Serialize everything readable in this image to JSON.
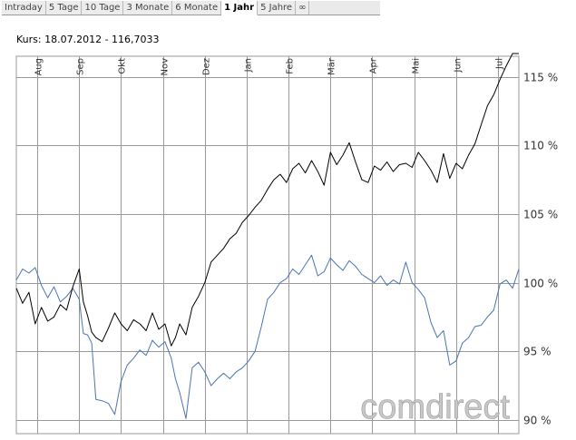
{
  "tabs": [
    {
      "id": "intraday",
      "label": "Intraday",
      "active": false
    },
    {
      "id": "5-tage",
      "label": "5 Tage",
      "active": false
    },
    {
      "id": "10-tage",
      "label": "10 Tage",
      "active": false
    },
    {
      "id": "3-monate",
      "label": "3 Monate",
      "active": false
    },
    {
      "id": "6-monate",
      "label": "6 Monate",
      "active": false
    },
    {
      "id": "1-jahr",
      "label": "1 Jahr",
      "active": true
    },
    {
      "id": "5-jahre",
      "label": "5 Jahre",
      "active": false
    },
    {
      "id": "max",
      "label": "∞",
      "active": false
    }
  ],
  "kurs_label": "Kurs: 18.07.2012 - 116,7033",
  "watermark": "comdirect",
  "colors": {
    "price": "#000000",
    "benchmark": "#4a74b4",
    "grid": "#999999",
    "watermark": "#c8c8c8"
  },
  "chart_data": {
    "type": "line",
    "title": "",
    "xlabel": "",
    "ylabel": "",
    "ylim": [
      89,
      116.5
    ],
    "y_ticks": [
      90,
      95,
      100,
      105,
      110,
      115
    ],
    "y_tick_labels": [
      "90 %",
      "95 %",
      "100 %",
      "105 %",
      "110 %",
      "115 %"
    ],
    "x_range": [
      0,
      12
    ],
    "x_ticks": [
      0.5,
      1.5,
      2.5,
      3.5,
      4.5,
      5.5,
      6.5,
      7.5,
      8.5,
      9.5,
      10.5,
      11.5
    ],
    "x_tick_labels": [
      "Aug",
      "Sep",
      "Okt",
      "Nov",
      "Dez",
      "Jan",
      "Feb",
      "Mär",
      "Apr",
      "Mai",
      "Jun",
      "Jul"
    ],
    "grid": true,
    "series": [
      {
        "color": "#000000",
        "x": [
          0,
          0.15,
          0.3,
          0.45,
          0.6,
          0.75,
          0.9,
          1.05,
          1.2,
          1.35,
          1.5,
          1.6,
          1.7,
          1.8,
          1.9,
          2.05,
          2.2,
          2.35,
          2.5,
          2.65,
          2.8,
          2.95,
          3.1,
          3.25,
          3.4,
          3.55,
          3.7,
          3.8,
          3.9,
          4.05,
          4.2,
          4.35,
          4.5,
          4.65,
          4.8,
          4.95,
          5.1,
          5.25,
          5.4,
          5.55,
          5.7,
          5.85,
          6.0,
          6.15,
          6.3,
          6.45,
          6.6,
          6.75,
          6.9,
          7.05,
          7.2,
          7.35,
          7.5,
          7.65,
          7.8,
          7.95,
          8.1,
          8.25,
          8.4,
          8.55,
          8.7,
          8.85,
          9.0,
          9.15,
          9.3,
          9.45,
          9.6,
          9.75,
          9.9,
          10.05,
          10.2,
          10.35,
          10.5,
          10.65,
          10.8,
          10.95,
          11.1,
          11.25,
          11.4,
          11.55,
          11.7,
          11.85,
          12.0
        ],
        "values": [
          99.6,
          98.5,
          99.3,
          97.0,
          98.2,
          97.2,
          97.5,
          98.4,
          98.0,
          99.7,
          101.0,
          98.6,
          97.6,
          96.4,
          96.0,
          95.7,
          96.7,
          97.8,
          97.0,
          96.5,
          97.3,
          97.0,
          96.5,
          97.8,
          96.6,
          97.0,
          95.4,
          96.0,
          97.0,
          96.2,
          98.2,
          99.0,
          100.0,
          101.5,
          102.0,
          102.5,
          103.2,
          103.6,
          104.4,
          104.9,
          105.5,
          106.0,
          106.8,
          107.5,
          107.9,
          107.3,
          108.3,
          108.7,
          108.0,
          108.9,
          108.1,
          107.1,
          109.5,
          108.6,
          109.3,
          110.2,
          108.8,
          107.5,
          107.3,
          108.5,
          108.2,
          108.8,
          108.1,
          108.6,
          108.7,
          108.4,
          109.5,
          108.9,
          108.2,
          107.3,
          109.4,
          107.6,
          108.7,
          108.3,
          109.3,
          110.1,
          111.5,
          112.9,
          113.7,
          114.8,
          115.8,
          116.7,
          116.7
        ]
      },
      {
        "color": "#4a74b4",
        "x": [
          0,
          0.15,
          0.3,
          0.45,
          0.6,
          0.75,
          0.9,
          1.05,
          1.2,
          1.35,
          1.5,
          1.6,
          1.7,
          1.8,
          1.9,
          2.05,
          2.2,
          2.35,
          2.5,
          2.65,
          2.8,
          2.95,
          3.1,
          3.25,
          3.4,
          3.55,
          3.7,
          3.8,
          3.9,
          4.05,
          4.2,
          4.35,
          4.5,
          4.65,
          4.8,
          4.95,
          5.1,
          5.25,
          5.4,
          5.55,
          5.7,
          5.85,
          6.0,
          6.15,
          6.3,
          6.45,
          6.6,
          6.75,
          6.9,
          7.05,
          7.2,
          7.35,
          7.5,
          7.65,
          7.8,
          7.95,
          8.1,
          8.25,
          8.4,
          8.55,
          8.7,
          8.85,
          9.0,
          9.15,
          9.3,
          9.45,
          9.6,
          9.75,
          9.9,
          10.05,
          10.2,
          10.35,
          10.5,
          10.65,
          10.8,
          10.95,
          11.1,
          11.25,
          11.4,
          11.55,
          11.7,
          11.85,
          12.0
        ],
        "values": [
          100.2,
          101.0,
          100.7,
          101.1,
          99.8,
          98.9,
          99.7,
          98.6,
          99.0,
          99.6,
          98.8,
          96.3,
          96.2,
          95.6,
          91.5,
          91.4,
          91.2,
          90.4,
          92.8,
          94.0,
          94.5,
          95.1,
          94.7,
          95.8,
          95.3,
          95.7,
          94.5,
          93.0,
          92.0,
          90.1,
          93.8,
          94.2,
          93.5,
          92.5,
          93.0,
          93.4,
          93.0,
          93.5,
          93.8,
          94.3,
          95.0,
          96.8,
          98.8,
          99.3,
          100.0,
          100.3,
          101.0,
          100.6,
          101.3,
          102.0,
          100.5,
          100.8,
          101.8,
          101.3,
          100.9,
          101.6,
          101.2,
          100.6,
          100.3,
          100.0,
          100.5,
          99.8,
          100.2,
          99.9,
          101.5,
          100.0,
          99.5,
          98.9,
          97.1,
          96.0,
          96.5,
          94.0,
          94.3,
          95.6,
          96.0,
          96.8,
          96.9,
          97.5,
          98.0,
          99.9,
          100.2,
          99.6,
          101.0
        ]
      }
    ]
  }
}
